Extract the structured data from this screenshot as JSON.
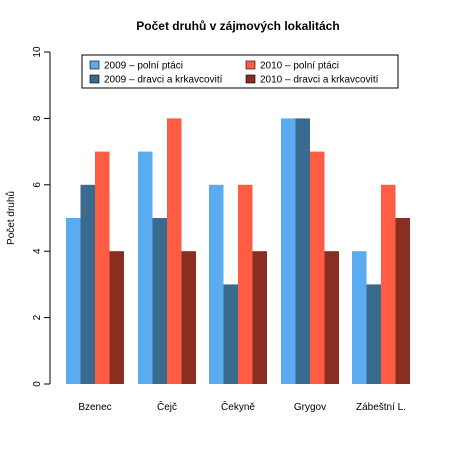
{
  "chart_data": {
    "type": "bar",
    "title": "Počet druhů v zájmových lokalitách",
    "ylabel": "Počet druhů",
    "xlabel": "",
    "ylim": [
      0,
      10
    ],
    "yticks": [
      "0",
      "2",
      "4",
      "6",
      "8",
      "10"
    ],
    "categories": [
      "Bzenec",
      "Čejč",
      "Čekyně",
      "Grygov",
      "Zábeštní L."
    ],
    "series": [
      {
        "name": "2009 – polní ptáci",
        "color": "#5aabf0",
        "values": [
          5,
          7,
          6,
          8,
          4
        ]
      },
      {
        "name": "2009 – dravci a krkavcovití",
        "color": "#3a6b8f",
        "values": [
          6,
          5,
          3,
          8,
          3
        ]
      },
      {
        "name": "2010 – polní ptáci",
        "color": "#ff5c44",
        "values": [
          7,
          8,
          6,
          7,
          6
        ]
      },
      {
        "name": "2010 – dravci a krkavcovití",
        "color": "#8b2e22",
        "values": [
          4,
          4,
          4,
          4,
          5
        ]
      }
    ],
    "legend_position": "top-center",
    "grid": false
  }
}
